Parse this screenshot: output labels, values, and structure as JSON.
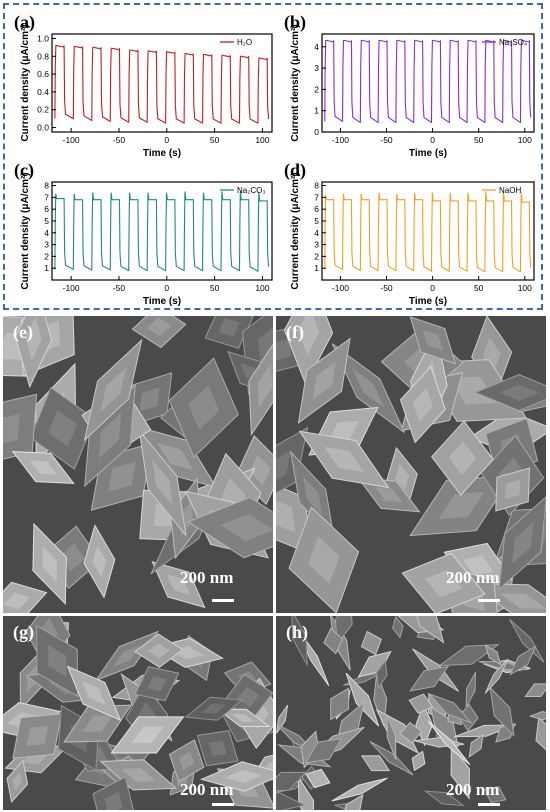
{
  "chart_data": [
    {
      "type": "line",
      "panel_label": "(a)",
      "legend": "H₂O",
      "color": "#c41e1e",
      "xlabel": "Time (s)",
      "ylabel": "Current density (μA/cm²)",
      "xlim": [
        -120,
        110
      ],
      "ylim": [
        -0.05,
        1.05
      ],
      "xticks": [
        -100,
        -50,
        0,
        50,
        100
      ],
      "yticks": [
        0.0,
        0.2,
        0.4,
        0.6,
        0.8,
        1.0
      ],
      "ytick_labels": [
        "0.0",
        "0.2",
        "0.4",
        "0.6",
        "0.8",
        "1.0"
      ],
      "cycle_start": -117,
      "period": 19.3,
      "cycles": 12,
      "on_values": [
        0.92,
        0.91,
        0.9,
        0.89,
        0.87,
        0.86,
        0.85,
        0.83,
        0.82,
        0.81,
        0.8,
        0.78
      ],
      "off_values": [
        0.1,
        0.08,
        0.07,
        0.06,
        0.06,
        0.05,
        0.05,
        0.05,
        0.05,
        0.05,
        0.05,
        0.05
      ]
    },
    {
      "type": "line",
      "panel_label": "(b)",
      "legend": "Na₂SO₄",
      "color": "#8a2be2",
      "xlabel": "Time (s)",
      "ylabel": "Current density (μA/cm²)",
      "xlim": [
        -120,
        110
      ],
      "ylim": [
        0,
        4.6
      ],
      "xticks": [
        -100,
        -50,
        0,
        50,
        100
      ],
      "yticks": [
        0,
        1,
        2,
        3,
        4
      ],
      "ytick_labels": [
        "0",
        "1",
        "2",
        "3",
        "4"
      ],
      "cycle_start": -117,
      "period": 19.3,
      "cycles": 12,
      "on_values": [
        4.3,
        4.3,
        4.3,
        4.3,
        4.3,
        4.3,
        4.3,
        4.3,
        4.3,
        4.3,
        4.3,
        4.3
      ],
      "off_values": [
        0.5,
        0.45,
        0.45,
        0.45,
        0.45,
        0.45,
        0.45,
        0.45,
        0.45,
        0.45,
        0.45,
        0.45
      ]
    },
    {
      "type": "line",
      "panel_label": "(c)",
      "legend": "Na₂CO₃",
      "color": "#1f8a80",
      "xlabel": "Time (s)",
      "ylabel": "Current density (μA/cm²)",
      "xlim": [
        -120,
        110
      ],
      "ylim": [
        0,
        8.3
      ],
      "xticks": [
        -100,
        -50,
        0,
        50,
        100
      ],
      "yticks": [
        1,
        2,
        3,
        4,
        5,
        6,
        7,
        8
      ],
      "ytick_labels": [
        "1",
        "2",
        "3",
        "4",
        "5",
        "6",
        "7",
        "8"
      ],
      "cycle_start": -117,
      "period": 19.3,
      "cycles": 12,
      "on_values": [
        6.9,
        6.8,
        6.8,
        6.8,
        6.8,
        6.8,
        6.8,
        6.8,
        6.8,
        6.8,
        6.8,
        6.7
      ],
      "off_values": [
        0.9,
        0.85,
        0.85,
        0.8,
        0.8,
        0.8,
        0.8,
        0.8,
        0.8,
        0.8,
        0.75,
        0.75
      ],
      "spike_values": [
        7.3,
        7.3,
        7.4,
        7.4,
        7.4,
        7.4,
        7.4,
        7.5,
        7.4,
        7.5,
        7.5,
        7.4
      ]
    },
    {
      "type": "line",
      "panel_label": "(d)",
      "legend": "NaOH",
      "color": "#f0a020",
      "xlabel": "Time (s)",
      "ylabel": "Current density (μA/cm²)",
      "xlim": [
        -120,
        110
      ],
      "ylim": [
        0,
        8.3
      ],
      "xticks": [
        -100,
        -50,
        0,
        50,
        100
      ],
      "yticks": [
        1,
        2,
        3,
        4,
        5,
        6,
        7,
        8
      ],
      "ytick_labels": [
        "1",
        "2",
        "3",
        "4",
        "5",
        "6",
        "7",
        "8"
      ],
      "cycle_start": -117,
      "period": 19.3,
      "cycles": 12,
      "on_values": [
        6.8,
        6.8,
        6.8,
        6.8,
        6.8,
        6.8,
        6.7,
        6.7,
        6.7,
        6.7,
        6.7,
        6.6
      ],
      "off_values": [
        0.9,
        0.8,
        0.8,
        0.8,
        0.8,
        0.75,
        0.75,
        0.75,
        0.7,
        0.7,
        0.7,
        0.7
      ],
      "spike_values": [
        7.2,
        7.3,
        7.3,
        7.4,
        7.3,
        7.4,
        7.4,
        7.4,
        7.4,
        7.5,
        7.5,
        7.4
      ]
    }
  ],
  "sem_images": [
    {
      "label": "(e)",
      "scale": "200 nm",
      "style": "large"
    },
    {
      "label": "(f)",
      "scale": "200 nm",
      "style": "large"
    },
    {
      "label": "(g)",
      "scale": "200 nm",
      "style": "medium"
    },
    {
      "label": "(h)",
      "scale": "200 nm",
      "style": "platelet"
    }
  ],
  "colors": {
    "frame": "#3b6aa5",
    "sem_bg": "#6f6f6f"
  }
}
